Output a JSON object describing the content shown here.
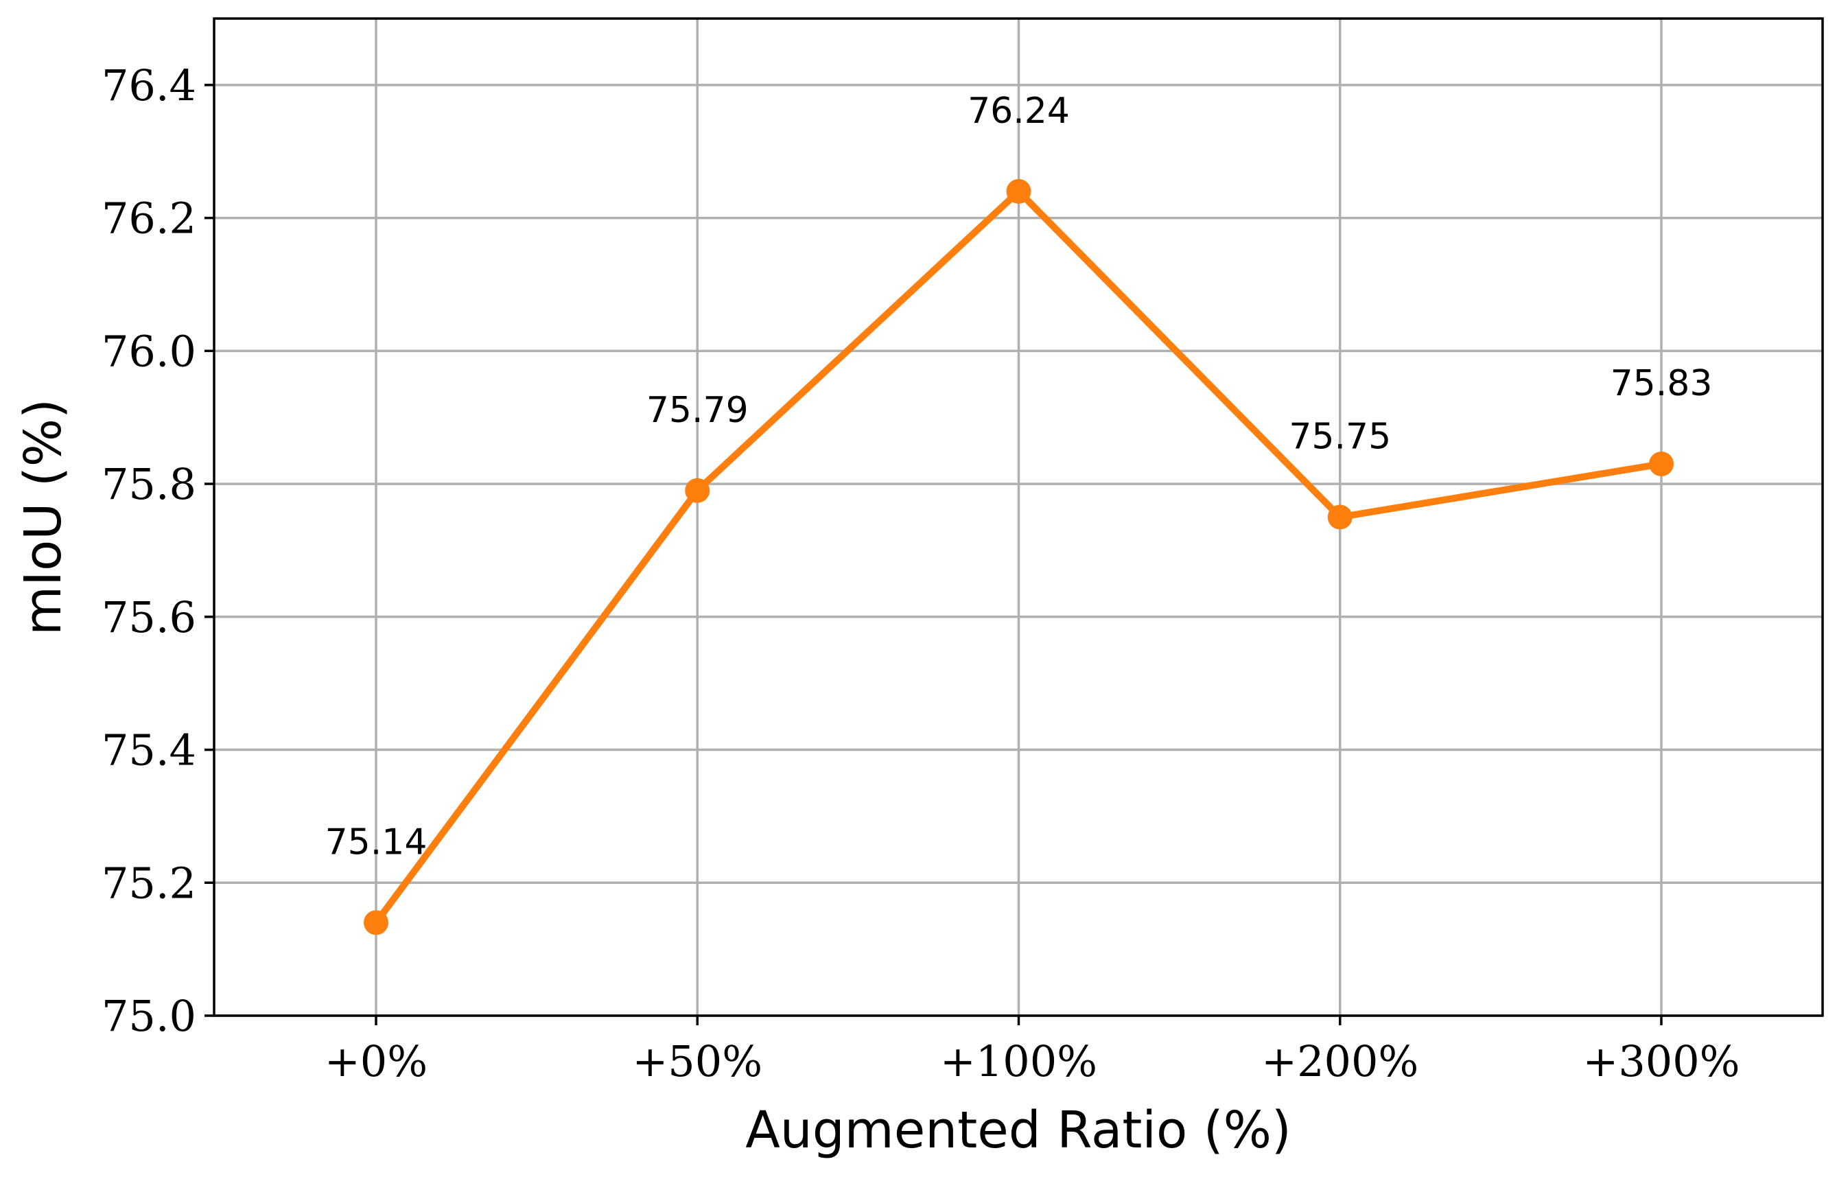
{
  "chart_data": {
    "type": "line",
    "categories": [
      "+0%",
      "+50%",
      "+100%",
      "+200%",
      "+300%"
    ],
    "series": [
      {
        "values": [
          75.14,
          75.79,
          76.24,
          75.75,
          75.83
        ],
        "color": "#ff7f0e",
        "marker": "circle"
      }
    ],
    "data_labels": [
      "75.14",
      "75.79",
      "76.24",
      "75.75",
      "75.83"
    ],
    "xlabel": "Augmented Ratio (%)",
    "ylabel": "mIoU (%)",
    "ylim": [
      75.0,
      76.5
    ],
    "yticks": [
      75.0,
      75.2,
      75.4,
      75.6,
      75.8,
      76.0,
      76.2,
      76.4
    ],
    "ytick_labels": [
      "75.0",
      "75.2",
      "75.4",
      "75.6",
      "75.8",
      "76.0",
      "76.2",
      "76.4"
    ],
    "grid": true,
    "legend": false
  }
}
